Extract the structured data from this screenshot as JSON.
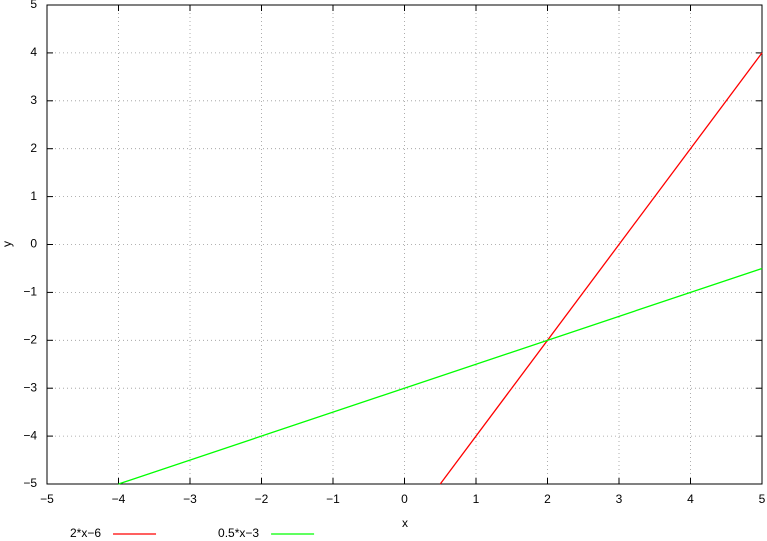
{
  "chart_data": {
    "type": "line",
    "x_label": "x",
    "y_label": "y",
    "xlim": [
      -5,
      5
    ],
    "ylim": [
      -5,
      5
    ],
    "xticks": [
      {
        "value": -5,
        "label": "−5"
      },
      {
        "value": -4,
        "label": "−4"
      },
      {
        "value": -3,
        "label": "−3"
      },
      {
        "value": -2,
        "label": "−2"
      },
      {
        "value": -1,
        "label": "−1"
      },
      0,
      1,
      2,
      3,
      4,
      5
    ],
    "yticks": [
      {
        "value": -5,
        "label": "−5"
      },
      {
        "value": -4,
        "label": "−4"
      },
      {
        "value": -3,
        "label": "−3"
      },
      {
        "value": -2,
        "label": "−2"
      },
      {
        "value": -1,
        "label": "−1"
      },
      0,
      1,
      2,
      3,
      4,
      5
    ],
    "grid": true,
    "legend": "bottom-left",
    "series": [
      {
        "name": "2*x−6",
        "color": "#ff0000",
        "x": [
          0.5,
          5
        ],
        "values": [
          -5,
          4
        ]
      },
      {
        "name": "0.5*x−3",
        "color": "#00ff00",
        "x": [
          -4,
          5
        ],
        "values": [
          -5,
          -0.5
        ]
      }
    ]
  }
}
